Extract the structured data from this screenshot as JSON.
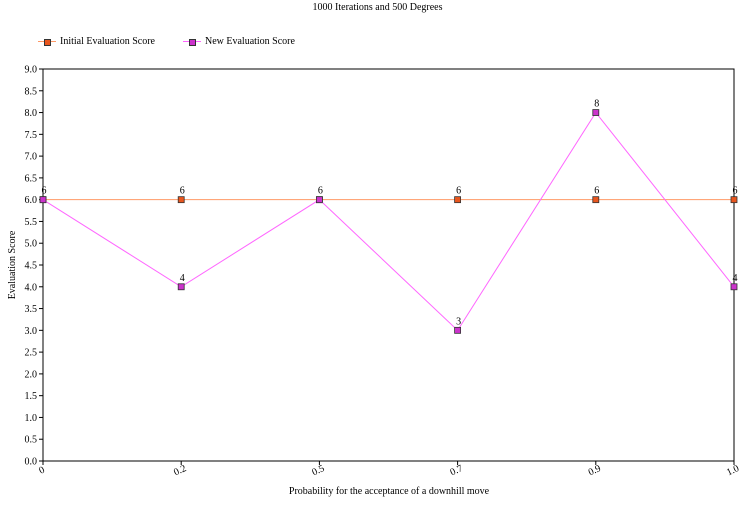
{
  "chart_data": {
    "type": "line",
    "title": "1000 Iterations and 500 Degrees",
    "xlabel": "Probability for the acceptance of a downhill move",
    "ylabel": "Evaluation Score",
    "categories": [
      "0",
      "0.2",
      "0.5",
      "0.7",
      "0.9",
      "1.0"
    ],
    "ylim": [
      0,
      9
    ],
    "yticks": [
      "0.0",
      "0.5",
      "1.0",
      "1.5",
      "2.0",
      "2.5",
      "3.0",
      "3.5",
      "4.0",
      "4.5",
      "5.0",
      "5.5",
      "6.0",
      "6.5",
      "7.0",
      "7.5",
      "8.0",
      "8.5",
      "9.0"
    ],
    "grid": false,
    "legend_position": "top-left",
    "series": [
      {
        "name": "Initial Evaluation Score",
        "values": [
          6,
          6,
          6,
          6,
          6,
          6
        ],
        "labels": [
          "6",
          "6",
          "6",
          "6",
          "6",
          "6"
        ],
        "color": "#FF9966",
        "marker_color": "#E8561E"
      },
      {
        "name": "New Evaluation Score",
        "values": [
          6,
          4,
          6,
          3,
          8,
          4
        ],
        "labels": [
          "",
          "4",
          "",
          "3",
          "8",
          "4"
        ],
        "color": "#FF66FF",
        "marker_color": "#CC33CC"
      }
    ]
  }
}
